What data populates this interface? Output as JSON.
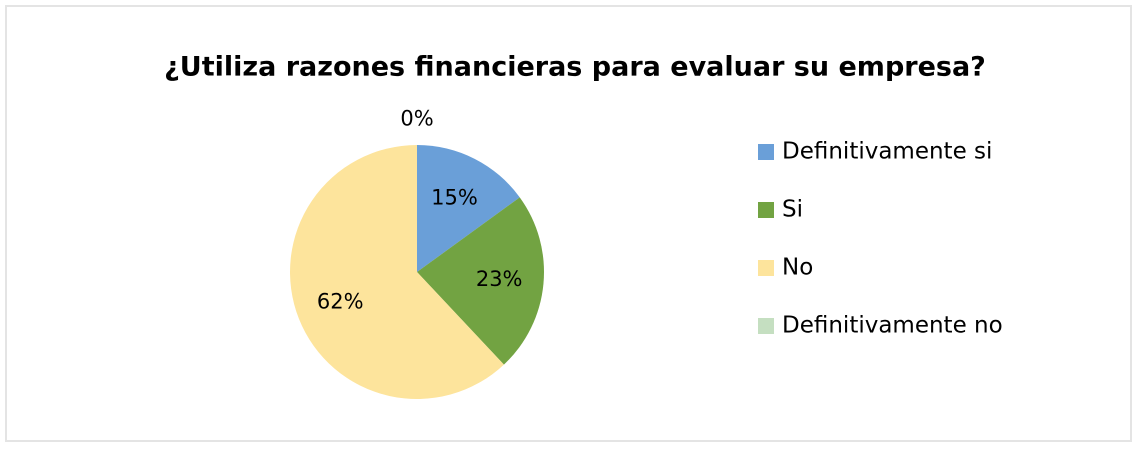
{
  "chart_data": {
    "type": "pie",
    "title": "¿Utiliza razones financieras para evaluar su empresa?",
    "categories": [
      "Definitivamente si",
      "Si",
      "No",
      "Definitivamente no"
    ],
    "values": [
      15,
      23,
      62,
      0
    ],
    "value_labels": [
      "15%",
      "23%",
      "62%",
      "0%"
    ],
    "colors": [
      "#6a9fd8",
      "#72a342",
      "#fde49c",
      "#c5dfc1"
    ],
    "legend": "right"
  }
}
